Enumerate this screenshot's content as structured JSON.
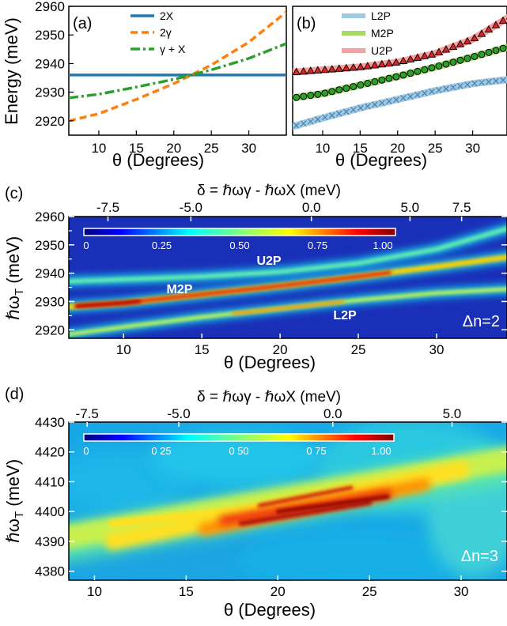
{
  "chart_data": [
    {
      "panel": "(a)",
      "type": "line",
      "xlabel": "θ (Degrees)",
      "ylabel": "Energy (meV)",
      "xlim": [
        6,
        35
      ],
      "ylim": [
        2915,
        2960
      ],
      "xticks": [
        10,
        15,
        20,
        25,
        30
      ],
      "yticks": [
        2920,
        2930,
        2940,
        2950,
        2960
      ],
      "legend_position": "top-center",
      "series": [
        {
          "name": "2X",
          "color": "#1f77b4",
          "style": "solid",
          "x": [
            6,
            10,
            15,
            20,
            25,
            30,
            35
          ],
          "y": [
            2936,
            2936,
            2936,
            2936,
            2936,
            2936,
            2936
          ]
        },
        {
          "name": "2γ",
          "color": "#ff7f0e",
          "style": "dashed",
          "x": [
            6,
            10,
            15,
            20,
            25,
            30,
            35
          ],
          "y": [
            2920,
            2922.5,
            2927.5,
            2933,
            2939.5,
            2947.5,
            2958
          ]
        },
        {
          "name": "γ + X",
          "color": "#2ca02c",
          "style": "dashdot",
          "x": [
            6,
            10,
            15,
            20,
            25,
            30,
            35
          ],
          "y": [
            2928,
            2929.3,
            2931.8,
            2934.5,
            2937.8,
            2941.8,
            2947
          ]
        }
      ]
    },
    {
      "panel": "(b)",
      "type": "scatter",
      "xlabel": "θ (Degrees)",
      "ylim": [
        2915,
        2960
      ],
      "xlim": [
        6,
        35
      ],
      "xticks": [
        10,
        15,
        20,
        25,
        30
      ],
      "legend_position": "top-center",
      "series": [
        {
          "name": "L2P",
          "color": "#9ecae1",
          "marker": "x",
          "markercolor": "#4a7fb0",
          "x": [
            6,
            10,
            15,
            20,
            25,
            30,
            35
          ],
          "y": [
            2918,
            2921,
            2924.5,
            2927.5,
            2930.5,
            2933,
            2934.5
          ]
        },
        {
          "name": "M2P",
          "color": "#a6d96a",
          "marker": "circle",
          "markercolor": "#2ca02c",
          "x": [
            6,
            10,
            15,
            20,
            25,
            30,
            35
          ],
          "y": [
            2928,
            2929.5,
            2932.5,
            2935.5,
            2938.8,
            2942.3,
            2946
          ]
        },
        {
          "name": "U2P",
          "color": "#f4a3a3",
          "marker": "triangle",
          "markercolor": "#d62728",
          "x": [
            6,
            10,
            15,
            20,
            25,
            30,
            35
          ],
          "y": [
            2937,
            2937.8,
            2938.8,
            2940.5,
            2943.5,
            2948.5,
            2956.5
          ]
        }
      ]
    },
    {
      "panel": "(c)",
      "type": "heatmap",
      "xlabel": "θ (Degrees)",
      "ylabel": "ℏω_T (meV)",
      "top_xlabel": "δ = ℏωγ - ℏωX (meV)",
      "xlim": [
        6.5,
        34.5
      ],
      "ylim": [
        2917,
        2960
      ],
      "xticks": [
        10,
        15,
        20,
        25,
        30
      ],
      "yticks": [
        2920,
        2930,
        2940,
        2950,
        2960
      ],
      "top_ticks": [
        "-7.5",
        "-5.0",
        "0.0",
        "5.0",
        "7.5"
      ],
      "top_ticks_theta": [
        9,
        14.3,
        22,
        28.3,
        31.6
      ],
      "colorbar_ticks": [
        "0",
        "0.25",
        "0.50",
        "0.75",
        "1.00"
      ],
      "branch_labels": [
        "U2P",
        "M2P",
        "L2P"
      ],
      "annotation": "Δn=2"
    },
    {
      "panel": "(d)",
      "type": "heatmap",
      "xlabel": "θ (Degrees)",
      "ylabel": "ℏω_T (meV)",
      "top_xlabel": "δ = ℏωγ - ℏωX (meV)",
      "xlim": [
        8.6,
        32.5
      ],
      "ylim": [
        4377,
        4430
      ],
      "xticks": [
        10,
        15,
        20,
        25,
        30
      ],
      "yticks": [
        4380,
        4390,
        4400,
        4410,
        4420,
        4430
      ],
      "top_ticks": [
        "-7.5",
        "-5.0",
        "0.0",
        "5.0"
      ],
      "top_ticks_theta": [
        9.6,
        14.6,
        23,
        29.5
      ],
      "colorbar_ticks": [
        "0",
        "0 25",
        "0 50",
        "0 75",
        "1.00"
      ],
      "annotation": "Δn=3"
    }
  ]
}
